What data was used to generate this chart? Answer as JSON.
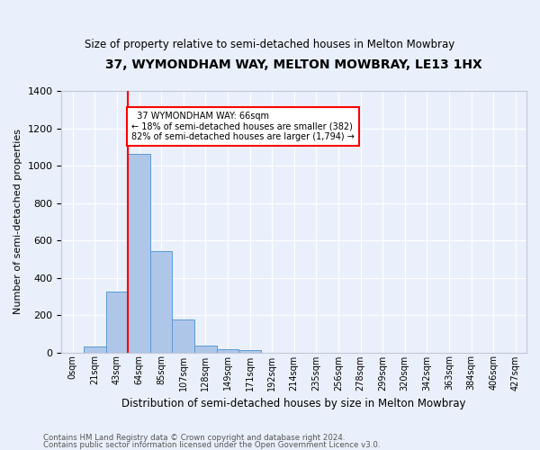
{
  "title": "37, WYMONDHAM WAY, MELTON MOWBRAY, LE13 1HX",
  "subtitle": "Size of property relative to semi-detached houses in Melton Mowbray",
  "xlabel": "Distribution of semi-detached houses by size in Melton Mowbray",
  "ylabel": "Number of semi-detached properties",
  "footer_line1": "Contains HM Land Registry data © Crown copyright and database right 2024.",
  "footer_line2": "Contains public sector information licensed under the Open Government Licence v3.0.",
  "bar_labels": [
    "0sqm",
    "21sqm",
    "43sqm",
    "64sqm",
    "85sqm",
    "107sqm",
    "128sqm",
    "149sqm",
    "171sqm",
    "192sqm",
    "214sqm",
    "235sqm",
    "256sqm",
    "278sqm",
    "299sqm",
    "320sqm",
    "342sqm",
    "363sqm",
    "384sqm",
    "406sqm",
    "427sqm"
  ],
  "bar_values": [
    0,
    30,
    325,
    1065,
    540,
    178,
    37,
    18,
    12,
    0,
    0,
    0,
    0,
    0,
    0,
    0,
    0,
    0,
    0,
    0,
    0
  ],
  "bar_color": "#aec6e8",
  "bar_edgecolor": "#5b9bd5",
  "ylim": [
    0,
    1400
  ],
  "yticks": [
    0,
    200,
    400,
    600,
    800,
    1000,
    1200,
    1400
  ],
  "property_label": "37 WYMONDHAM WAY: 66sqm",
  "pct_smaller": 18,
  "pct_smaller_count": 382,
  "pct_larger": 82,
  "pct_larger_count": 1794,
  "vline_bin_index": 3,
  "background_color": "#eaf0fb",
  "grid_color": "#ffffff"
}
